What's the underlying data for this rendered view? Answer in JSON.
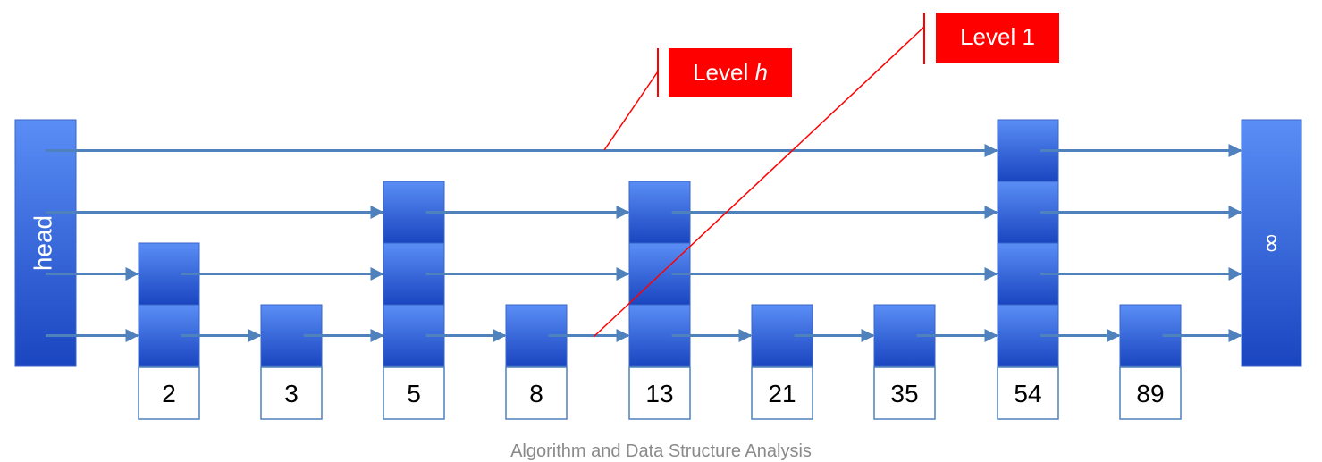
{
  "diagram": {
    "head_label": "head",
    "tail_label": "∞",
    "level_h_prefix": "Level ",
    "level_h_var": "h",
    "level_1": "Level 1",
    "keys": [
      {
        "key": "2",
        "height": 2
      },
      {
        "key": "3",
        "height": 1
      },
      {
        "key": "5",
        "height": 3
      },
      {
        "key": "8",
        "height": 1
      },
      {
        "key": "13",
        "height": 3
      },
      {
        "key": "21",
        "height": 1
      },
      {
        "key": "35",
        "height": 1
      },
      {
        "key": "54",
        "height": 4
      },
      {
        "key": "89",
        "height": 1
      }
    ],
    "max_level": 4
  },
  "footer": {
    "text": "Algorithm and Data Structure Analysis"
  },
  "colors": {
    "node_top": "#5a8ef5",
    "node_bottom": "#1a45c0",
    "arrow": "#4f81bd",
    "tag": "#ff0000",
    "line": "#ff0000"
  }
}
